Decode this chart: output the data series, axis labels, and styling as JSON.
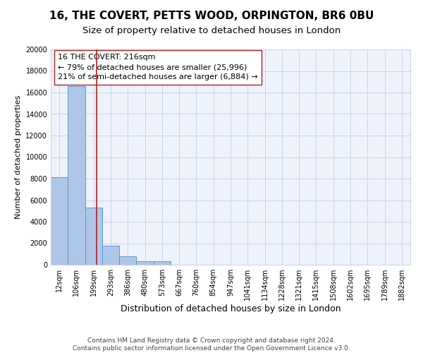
{
  "title_line1": "16, THE COVERT, PETTS WOOD, ORPINGTON, BR6 0BU",
  "title_line2": "Size of property relative to detached houses in London",
  "xlabel": "Distribution of detached houses by size in London",
  "ylabel": "Number of detached properties",
  "categories": [
    "12sqm",
    "106sqm",
    "199sqm",
    "293sqm",
    "386sqm",
    "480sqm",
    "573sqm",
    "667sqm",
    "760sqm",
    "854sqm",
    "947sqm",
    "1041sqm",
    "1134sqm",
    "1228sqm",
    "1321sqm",
    "1415sqm",
    "1508sqm",
    "1602sqm",
    "1695sqm",
    "1789sqm",
    "1882sqm"
  ],
  "values": [
    8100,
    16600,
    5300,
    1800,
    800,
    300,
    300,
    0,
    0,
    0,
    0,
    0,
    0,
    0,
    0,
    0,
    0,
    0,
    0,
    0,
    0
  ],
  "bar_color": "#aec6e8",
  "bar_edge_color": "#5b9bd5",
  "background_color": "#eef2fa",
  "grid_color": "#c8d4ed",
  "property_line_x": 2.16,
  "property_line_color": "#b22222",
  "annotation_box_text": "16 THE COVERT: 216sqm\n← 79% of detached houses are smaller (25,996)\n21% of semi-detached houses are larger (6,884) →",
  "ylim": [
    0,
    20000
  ],
  "yticks": [
    0,
    2000,
    4000,
    6000,
    8000,
    10000,
    12000,
    14000,
    16000,
    18000,
    20000
  ],
  "footer_line1": "Contains HM Land Registry data © Crown copyright and database right 2024.",
  "footer_line2": "Contains public sector information licensed under the Open Government Licence v3.0.",
  "title_fontsize": 11,
  "subtitle_fontsize": 9.5,
  "xlabel_fontsize": 9,
  "ylabel_fontsize": 8,
  "tick_fontsize": 7,
  "annotation_fontsize": 8,
  "footer_fontsize": 6.5
}
